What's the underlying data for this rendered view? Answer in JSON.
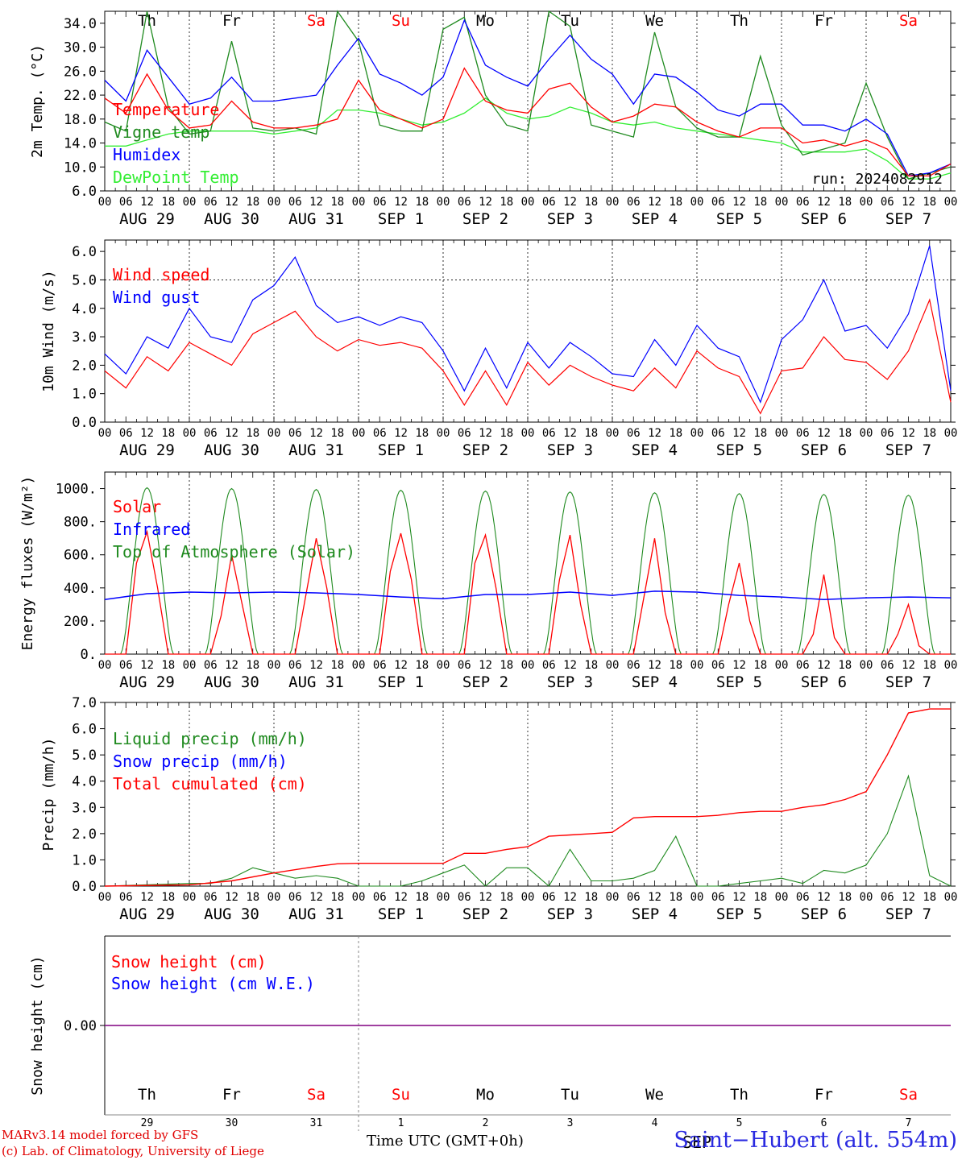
{
  "days": {
    "weekdays": [
      "Th",
      "Fr",
      "Sa",
      "Su",
      "Mo",
      "Tu",
      "We",
      "Th",
      "Fr",
      "Sa"
    ],
    "weekend_flags": [
      false,
      false,
      true,
      true,
      false,
      false,
      false,
      false,
      false,
      true
    ],
    "date_labels": [
      "AUG 29",
      "AUG 30",
      "AUG 31",
      "SEP  1",
      "SEP  2",
      "SEP  3",
      "SEP  4",
      "SEP  5",
      "SEP  6",
      "SEP  7"
    ],
    "day_numbers": [
      "29",
      "30",
      "31",
      "1",
      "2",
      "3",
      "4",
      "5",
      "6",
      "7"
    ],
    "hour_ticks": [
      "00",
      "06",
      "12",
      "18"
    ],
    "final_hour": "00"
  },
  "colors": {
    "red": "#ff0000",
    "green": "#1f8a1f",
    "blue": "#0000ff",
    "lightgreen": "#33ee33",
    "weekend": "#ff0000",
    "purple": "#800080"
  },
  "footer": {
    "model_line1": "MARv3.14 model forced by GFS",
    "model_line2": "(c) Lab. of Climatology, University of Liege",
    "time_label": "Time UTC (GMT+0h)",
    "station": "Saint−Hubert (alt. 554m)",
    "overlap_text": "SEP"
  },
  "chart_data": [
    {
      "type": "line",
      "ylabel": "2m Temp. (°C)",
      "ylim": [
        6,
        36
      ],
      "ticks": [
        "6.0",
        "10.0",
        "14.0",
        "18.0",
        "22.0",
        "26.0",
        "30.0",
        "34.0"
      ],
      "annotation": "run: 2024082912",
      "grid": "dotted day separators",
      "series": [
        {
          "name": "Temperature",
          "color": "red",
          "x": [
            0,
            6,
            12,
            18,
            24,
            30,
            36,
            42,
            48,
            54,
            60,
            66,
            72,
            78,
            84,
            90,
            96,
            102,
            108,
            114,
            120,
            126,
            132,
            138,
            144,
            150,
            156,
            162,
            168,
            174,
            180,
            186,
            192,
            198,
            204,
            210,
            216,
            222,
            228,
            234,
            240
          ],
          "values": [
            21.5,
            19,
            25.5,
            19.5,
            16.5,
            17,
            21,
            17.5,
            16.5,
            16.5,
            17,
            18,
            24.5,
            19.5,
            18,
            16.5,
            18,
            26.5,
            21,
            19.5,
            19,
            23,
            24,
            20,
            17.5,
            18.5,
            20.5,
            20,
            17.5,
            16,
            15,
            16.5,
            16.5,
            14,
            14.5,
            13.5,
            14.5,
            13,
            8.5,
            8.5,
            10.5
          ]
        },
        {
          "name": "Vigne temp",
          "color": "green",
          "x": [
            0,
            6,
            12,
            18,
            24,
            30,
            36,
            42,
            48,
            54,
            60,
            66,
            72,
            78,
            84,
            90,
            96,
            102,
            108,
            114,
            120,
            126,
            132,
            138,
            144,
            150,
            156,
            162,
            168,
            174,
            180,
            186,
            192,
            198,
            204,
            210,
            216,
            222,
            228,
            234,
            240
          ],
          "values": [
            17.5,
            16,
            36,
            20,
            15.5,
            16,
            31,
            16.5,
            16,
            16.5,
            15.5,
            36,
            31,
            17,
            16,
            16,
            33,
            35,
            22,
            17,
            16,
            36,
            33.5,
            17,
            16,
            15,
            32.5,
            20,
            16.5,
            15,
            15,
            28.5,
            17,
            12,
            13,
            14,
            24,
            15,
            8,
            9,
            10
          ]
        },
        {
          "name": "Humidex",
          "color": "blue",
          "x": [
            0,
            6,
            12,
            18,
            24,
            30,
            36,
            42,
            48,
            54,
            60,
            66,
            72,
            78,
            84,
            90,
            96,
            102,
            108,
            114,
            120,
            126,
            132,
            138,
            144,
            150,
            156,
            162,
            168,
            174,
            180,
            186,
            192,
            198,
            204,
            210,
            216,
            222,
            228,
            234,
            240
          ],
          "values": [
            24.5,
            21,
            29.5,
            25,
            20.5,
            21.5,
            25,
            21,
            21,
            21.5,
            22,
            27,
            31.5,
            25.5,
            24,
            22,
            25,
            34.5,
            27,
            25,
            23.5,
            28,
            32,
            28,
            25.5,
            20.5,
            25.5,
            25,
            22.5,
            19.5,
            18.5,
            20.5,
            20.5,
            17,
            17,
            16,
            18,
            15.5,
            8.5,
            9,
            10.5
          ]
        },
        {
          "name": "DewPoint Temp",
          "color": "lightgreen",
          "x": [
            0,
            6,
            12,
            18,
            24,
            30,
            36,
            42,
            48,
            54,
            60,
            66,
            72,
            78,
            84,
            90,
            96,
            102,
            108,
            114,
            120,
            126,
            132,
            138,
            144,
            150,
            156,
            162,
            168,
            174,
            180,
            186,
            192,
            198,
            204,
            210,
            216,
            222,
            228,
            234,
            240
          ],
          "values": [
            13.5,
            13.5,
            14.5,
            15.5,
            16,
            16,
            16,
            16,
            15.5,
            16,
            16.5,
            19.5,
            19.5,
            19,
            18,
            17,
            17.5,
            19,
            21.5,
            19,
            18,
            18.5,
            20,
            19,
            17.5,
            17,
            17.5,
            16.5,
            16,
            15.5,
            15,
            14.5,
            14,
            12.5,
            12.5,
            12.5,
            13,
            11,
            8,
            8,
            9
          ]
        }
      ]
    },
    {
      "type": "line",
      "ylabel": "10m Wind (m/s)",
      "ylim": [
        0,
        6.4
      ],
      "ticks": [
        "0.0",
        "1.0",
        "2.0",
        "3.0",
        "4.0",
        "5.0",
        "6.0"
      ],
      "reference_line": 5.0,
      "series": [
        {
          "name": "Wind speed",
          "color": "red",
          "x": [
            0,
            6,
            12,
            18,
            24,
            30,
            36,
            42,
            48,
            54,
            60,
            66,
            72,
            78,
            84,
            90,
            96,
            102,
            108,
            114,
            120,
            126,
            132,
            138,
            144,
            150,
            156,
            162,
            168,
            174,
            180,
            186,
            192,
            198,
            204,
            210,
            216,
            222,
            228,
            234,
            240
          ],
          "values": [
            1.8,
            1.2,
            2.3,
            1.8,
            2.8,
            2.4,
            2,
            3.1,
            3.5,
            3.9,
            3,
            2.5,
            2.9,
            2.7,
            2.8,
            2.6,
            1.8,
            0.6,
            1.8,
            0.6,
            2.1,
            1.3,
            2,
            1.6,
            1.3,
            1.1,
            1.9,
            1.2,
            2.5,
            1.9,
            1.6,
            0.3,
            1.8,
            1.9,
            3,
            2.2,
            2.1,
            1.5,
            2.5,
            4.3,
            0.7
          ]
        },
        {
          "name": "Wind gust",
          "color": "blue",
          "x": [
            0,
            6,
            12,
            18,
            24,
            30,
            36,
            42,
            48,
            54,
            60,
            66,
            72,
            78,
            84,
            90,
            96,
            102,
            108,
            114,
            120,
            126,
            132,
            138,
            144,
            150,
            156,
            162,
            168,
            174,
            180,
            186,
            192,
            198,
            204,
            210,
            216,
            222,
            228,
            234,
            240
          ],
          "values": [
            2.4,
            1.7,
            3,
            2.6,
            4,
            3,
            2.8,
            4.3,
            4.8,
            5.8,
            4.1,
            3.5,
            3.7,
            3.4,
            3.7,
            3.5,
            2.5,
            1.1,
            2.6,
            1.2,
            2.8,
            1.9,
            2.8,
            2.3,
            1.7,
            1.6,
            2.9,
            2,
            3.4,
            2.6,
            2.3,
            0.7,
            2.9,
            3.6,
            5,
            3.2,
            3.4,
            2.6,
            3.8,
            6.2,
            1.1
          ]
        }
      ]
    },
    {
      "type": "line",
      "ylabel": "Energy fluxes (W/m²)",
      "ylim": [
        0,
        1100
      ],
      "ticks": [
        "0.",
        "200.",
        "400.",
        "600.",
        "800.",
        "1000."
      ],
      "series": [
        {
          "name": "Solar",
          "color": "red",
          "x": [
            0,
            4,
            6,
            9,
            12,
            15,
            18,
            21,
            24,
            30,
            33,
            36,
            39,
            42,
            45,
            48,
            54,
            57,
            60,
            63,
            66,
            69,
            72,
            78,
            81,
            84,
            87,
            90,
            93,
            96,
            102,
            105,
            108,
            111,
            114,
            117,
            120,
            126,
            129,
            132,
            135,
            138,
            141,
            144,
            150,
            153,
            156,
            159,
            162,
            165,
            168,
            174,
            177,
            180,
            183,
            186,
            189,
            192,
            198,
            201,
            204,
            207,
            210,
            213,
            216,
            222,
            225,
            228,
            231,
            234,
            237,
            240
          ],
          "values": [
            0,
            0,
            0,
            550,
            740,
            400,
            0,
            0,
            0,
            0,
            230,
            600,
            300,
            0,
            0,
            0,
            0,
            350,
            700,
            400,
            0,
            0,
            0,
            0,
            500,
            730,
            450,
            0,
            0,
            0,
            0,
            550,
            720,
            400,
            0,
            0,
            0,
            0,
            450,
            720,
            300,
            0,
            0,
            0,
            0,
            350,
            700,
            250,
            0,
            0,
            0,
            0,
            300,
            550,
            200,
            0,
            0,
            0,
            0,
            120,
            480,
            100,
            0,
            0,
            0,
            0,
            120,
            300,
            50,
            0,
            0,
            0
          ]
        },
        {
          "name": "Infrared",
          "color": "blue",
          "x": [
            0,
            12,
            24,
            36,
            48,
            60,
            72,
            84,
            96,
            108,
            120,
            132,
            144,
            156,
            168,
            180,
            192,
            204,
            216,
            228,
            240
          ],
          "values": [
            330,
            365,
            375,
            370,
            375,
            370,
            360,
            345,
            335,
            360,
            360,
            375,
            355,
            380,
            375,
            355,
            345,
            330,
            340,
            345,
            340
          ]
        },
        {
          "name": "Top of Atmosphere (Solar)",
          "color": "green",
          "daily_peaks": [
            1005,
            1000,
            995,
            990,
            985,
            980,
            975,
            970,
            965,
            960
          ]
        }
      ]
    },
    {
      "type": "line",
      "ylabel": "Precip (mm/h)",
      "ylim": [
        0,
        7
      ],
      "ticks": [
        "0.0",
        "1.0",
        "2.0",
        "3.0",
        "4.0",
        "5.0",
        "6.0",
        "7.0"
      ],
      "series": [
        {
          "name": "Liquid precip (mm/h)",
          "color": "green",
          "x": [
            0,
            24,
            30,
            36,
            42,
            48,
            54,
            60,
            66,
            72,
            84,
            90,
            96,
            102,
            108,
            114,
            120,
            126,
            132,
            138,
            144,
            150,
            156,
            162,
            168,
            174,
            180,
            186,
            192,
            198,
            204,
            210,
            216,
            222,
            228,
            234,
            240
          ],
          "values": [
            0,
            0.1,
            0.1,
            0.3,
            0.7,
            0.5,
            0.3,
            0.4,
            0.3,
            0,
            0,
            0.2,
            0.5,
            0.8,
            0,
            0.7,
            0.7,
            0,
            1.4,
            0.2,
            0.2,
            0.3,
            0.6,
            1.9,
            0,
            0,
            0.1,
            0.2,
            0.3,
            0.1,
            0.6,
            0.5,
            0.8,
            2.0,
            4.2,
            0.4,
            0
          ]
        },
        {
          "name": "Snow precip (mm/h)",
          "color": "blue",
          "values": []
        },
        {
          "name": "Total cumulated (cm)",
          "color": "red",
          "x": [
            0,
            24,
            36,
            48,
            60,
            66,
            72,
            84,
            96,
            102,
            108,
            114,
            120,
            126,
            132,
            138,
            144,
            150,
            156,
            162,
            168,
            174,
            180,
            186,
            192,
            198,
            204,
            210,
            216,
            222,
            228,
            234,
            240
          ],
          "values": [
            0,
            0.05,
            0.2,
            0.5,
            0.75,
            0.85,
            0.87,
            0.87,
            0.87,
            1.25,
            1.25,
            1.4,
            1.5,
            1.9,
            1.95,
            2.0,
            2.05,
            2.6,
            2.65,
            2.65,
            2.65,
            2.7,
            2.8,
            2.85,
            2.85,
            3.0,
            3.1,
            3.3,
            3.6,
            5.0,
            6.6,
            6.75,
            6.75
          ]
        }
      ]
    },
    {
      "type": "line",
      "ylabel": "Snow height (cm)",
      "ticks": [
        "0.00"
      ],
      "series": [
        {
          "name": "Snow height (cm)",
          "color": "red",
          "values": [
            0,
            0
          ]
        },
        {
          "name": "Snow height (cm W.E.)",
          "color": "blue",
          "values": [
            0,
            0
          ]
        }
      ]
    }
  ]
}
